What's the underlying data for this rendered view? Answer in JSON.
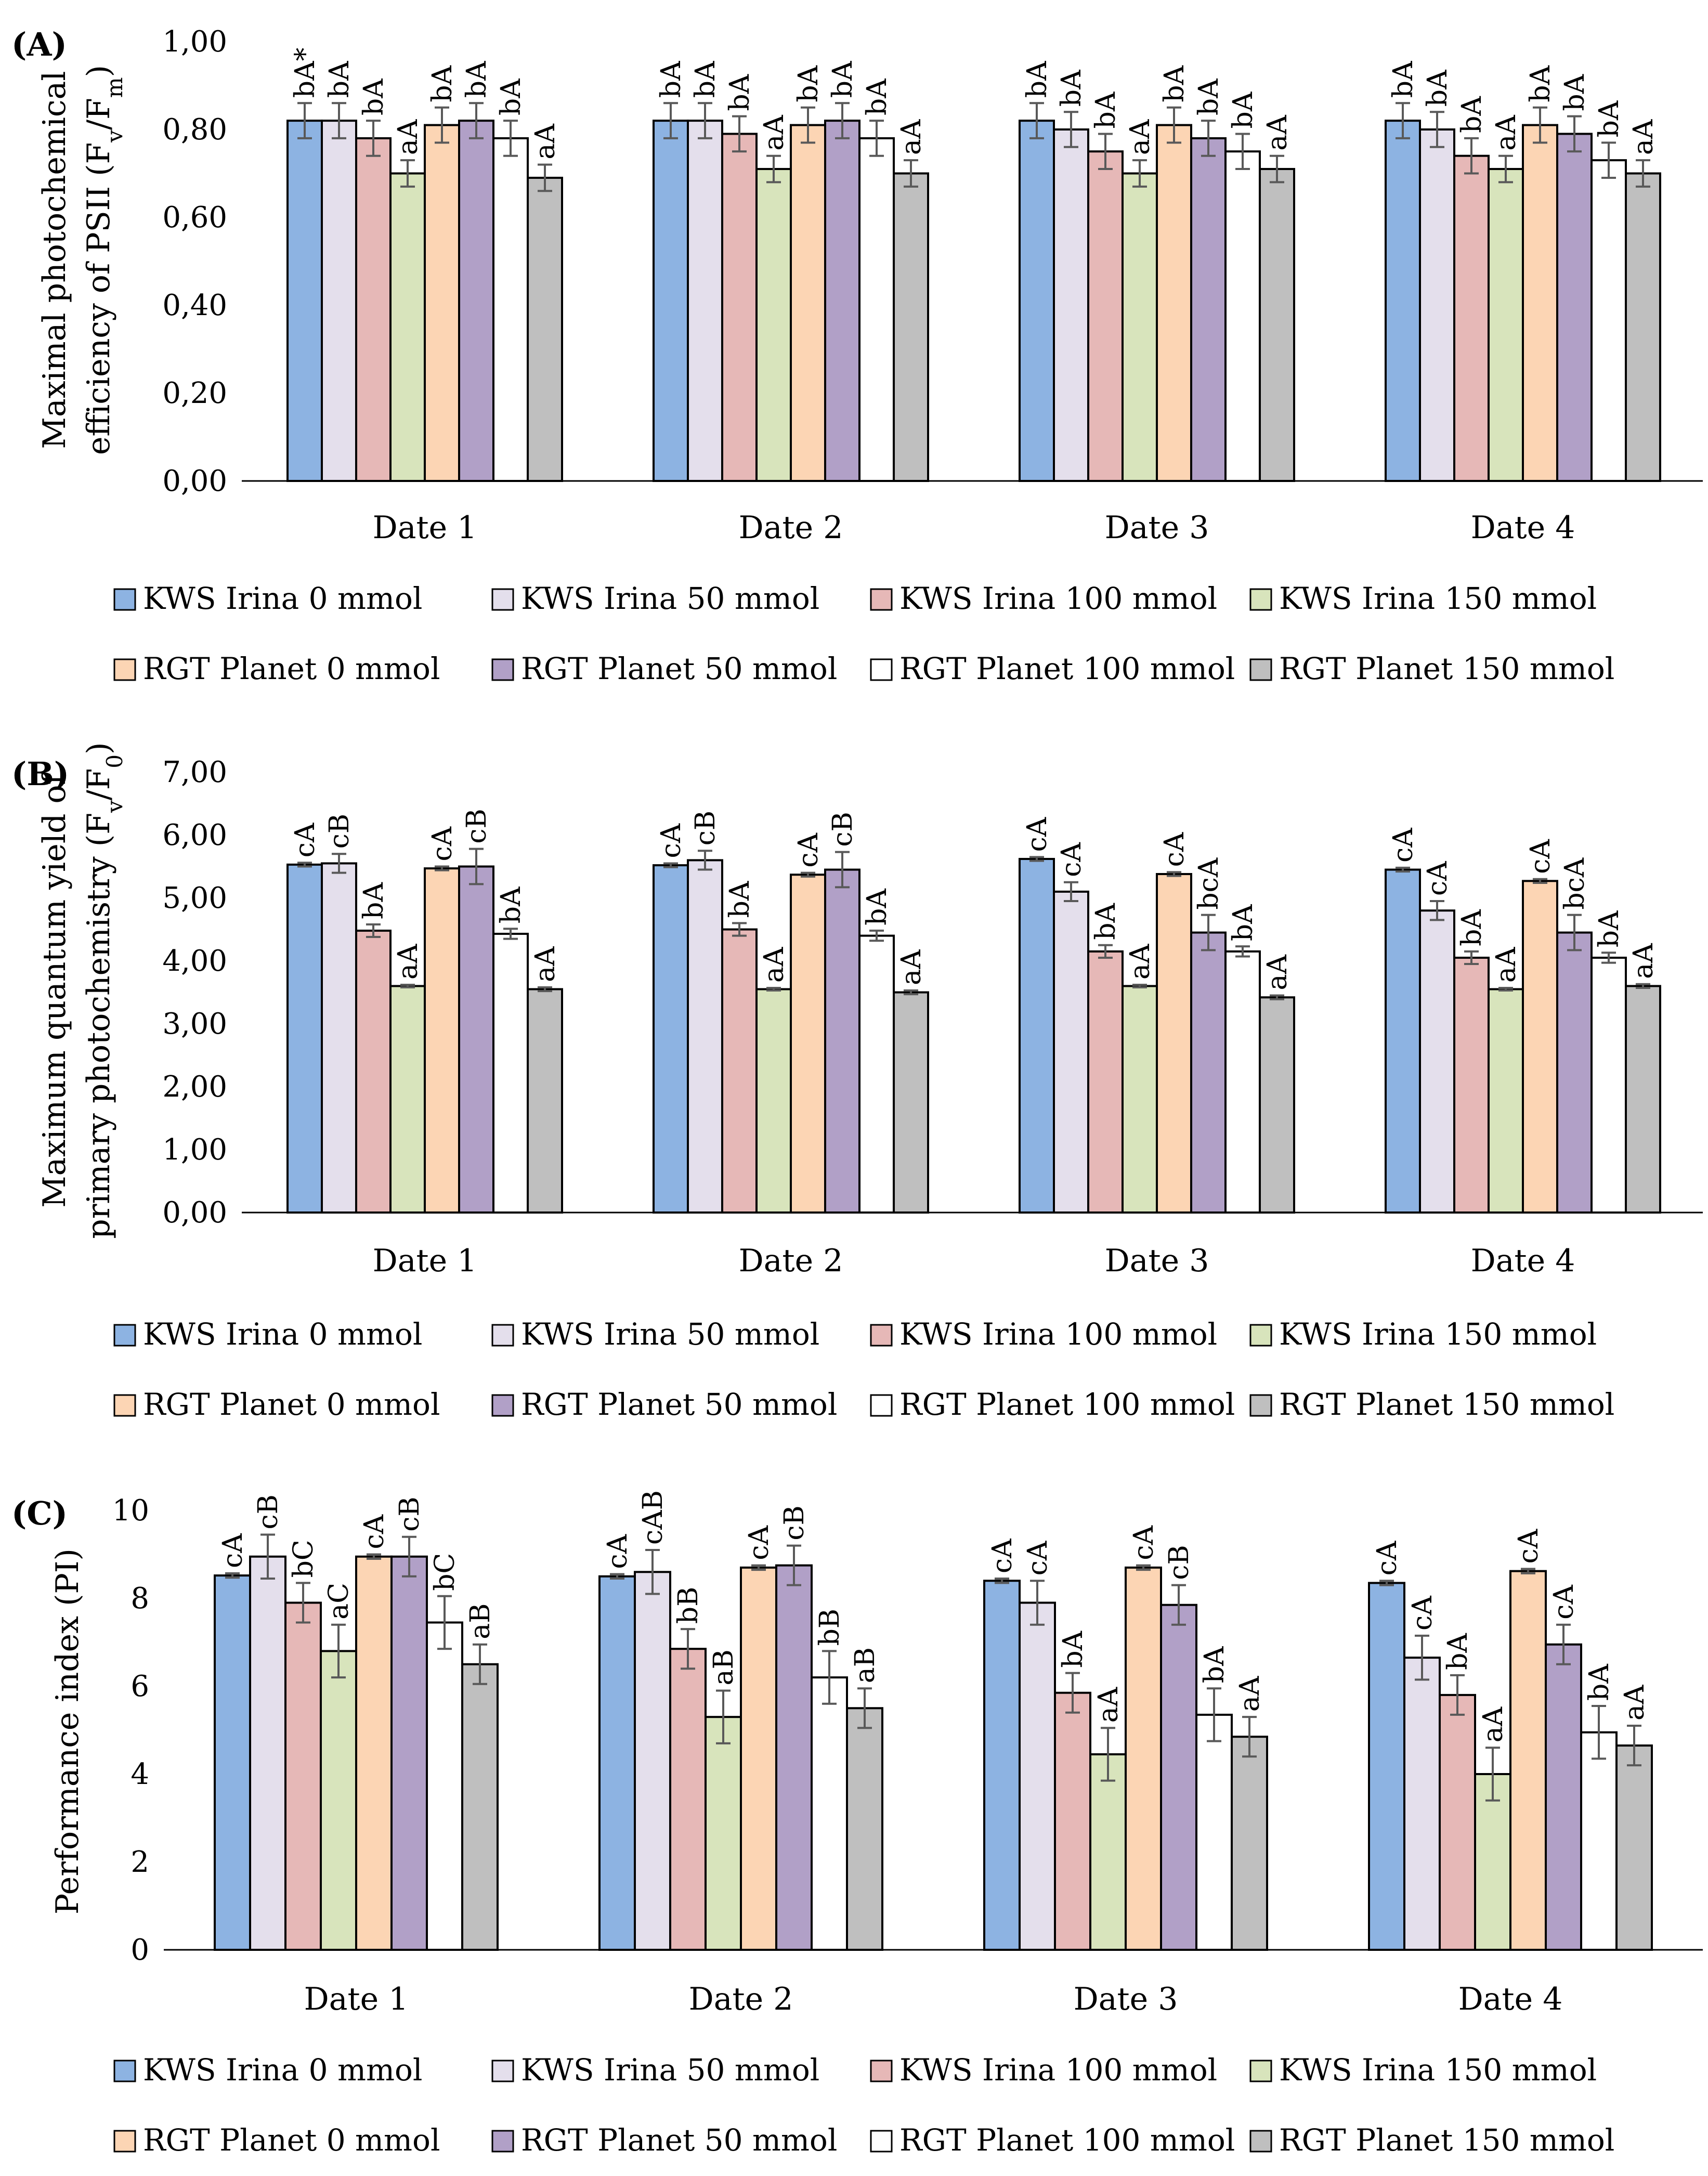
{
  "legend": {
    "items": [
      {
        "label": "KWS Irina 0 mmol",
        "color": "#8db3e2"
      },
      {
        "label": "KWS Irina 50 mmol",
        "color": "#e4dfec"
      },
      {
        "label": "KWS Irina 100 mmol",
        "color": "#e6b8b7"
      },
      {
        "label": "KWS Irina 150 mmol",
        "color": "#d8e4bc"
      },
      {
        "label": "RGT Planet 0 mmol",
        "color": "#fcd5b4"
      },
      {
        "label": "RGT Planet 50 mmol",
        "color": "#b1a0c7"
      },
      {
        "label": "RGT Planet 100 mmol",
        "color": "#ffffff"
      },
      {
        "label": "RGT Planet 150 mmol",
        "color": "#bfbfbf"
      }
    ]
  },
  "chart_data": [
    {
      "panel": "(A)",
      "type": "bar",
      "ylabel_line1": "Maximal photochemical",
      "ylabel_line2_parts": [
        "efficiency of PSII (F",
        "v",
        "/F",
        "m",
        ")"
      ],
      "ylim": [
        0,
        1
      ],
      "yticks": [
        "0,00",
        "0,20",
        "0,40",
        "0,60",
        "0,80",
        "1,00"
      ],
      "categories": [
        "Date 1",
        "Date 2",
        "Date 3",
        "Date 4"
      ],
      "series": [
        {
          "name": "KWS Irina 0 mmol",
          "values": [
            0.82,
            0.82,
            0.82,
            0.82
          ],
          "errors": [
            0.04,
            0.04,
            0.04,
            0.04
          ],
          "letters": [
            "bA*",
            "bA",
            "bA",
            "bA"
          ]
        },
        {
          "name": "KWS Irina 50 mmol",
          "values": [
            0.82,
            0.82,
            0.8,
            0.8
          ],
          "errors": [
            0.04,
            0.04,
            0.04,
            0.04
          ],
          "letters": [
            "bA",
            "bA",
            "bA",
            "bA"
          ]
        },
        {
          "name": "KWS Irina 100 mmol",
          "values": [
            0.78,
            0.79,
            0.75,
            0.74
          ],
          "errors": [
            0.04,
            0.04,
            0.04,
            0.04
          ],
          "letters": [
            "bA",
            "bA",
            "bA",
            "bA"
          ]
        },
        {
          "name": "KWS Irina 150 mmol",
          "values": [
            0.7,
            0.71,
            0.7,
            0.71
          ],
          "errors": [
            0.03,
            0.03,
            0.03,
            0.03
          ],
          "letters": [
            "aA",
            "aA",
            "aA",
            "aA"
          ]
        },
        {
          "name": "RGT Planet 0 mmol",
          "values": [
            0.81,
            0.81,
            0.81,
            0.81
          ],
          "errors": [
            0.04,
            0.04,
            0.04,
            0.04
          ],
          "letters": [
            "bA",
            "bA",
            "bA",
            "bA"
          ]
        },
        {
          "name": "RGT Planet 50 mmol",
          "values": [
            0.82,
            0.82,
            0.78,
            0.79
          ],
          "errors": [
            0.04,
            0.04,
            0.04,
            0.04
          ],
          "letters": [
            "bA",
            "bA",
            "bA",
            "bA"
          ]
        },
        {
          "name": "RGT Planet 100 mmol",
          "values": [
            0.78,
            0.78,
            0.75,
            0.73
          ],
          "errors": [
            0.04,
            0.04,
            0.04,
            0.04
          ],
          "letters": [
            "bA",
            "bA",
            "bA",
            "bA"
          ]
        },
        {
          "name": "RGT Planet 150 mmol",
          "values": [
            0.69,
            0.7,
            0.71,
            0.7
          ],
          "errors": [
            0.03,
            0.03,
            0.03,
            0.03
          ],
          "letters": [
            "aA",
            "aA",
            "aA",
            "aA"
          ]
        }
      ]
    },
    {
      "panel": "(B)",
      "type": "bar",
      "ylabel_line1": "Maximum quantum yield of",
      "ylabel_line2_parts": [
        "primary photochemistry (F",
        "v",
        "/F",
        "0",
        ")"
      ],
      "ylim": [
        0,
        7
      ],
      "yticks": [
        "0,00",
        "1,00",
        "2,00",
        "3,00",
        "4,00",
        "5,00",
        "6,00",
        "7,00"
      ],
      "categories": [
        "Date 1",
        "Date 2",
        "Date 3",
        "Date 4"
      ],
      "series": [
        {
          "name": "KWS Irina 0 mmol",
          "values": [
            5.53,
            5.52,
            5.62,
            5.45
          ],
          "errors": [
            0.03,
            0.03,
            0.03,
            0.03
          ],
          "letters": [
            "cA",
            "cA",
            "cA",
            "cA"
          ]
        },
        {
          "name": "KWS Irina 50 mmol",
          "values": [
            5.55,
            5.6,
            5.1,
            4.8
          ],
          "errors": [
            0.15,
            0.15,
            0.15,
            0.15
          ],
          "letters": [
            "cB",
            "cB",
            "cA",
            "cA"
          ]
        },
        {
          "name": "KWS Irina 100 mmol",
          "values": [
            4.48,
            4.5,
            4.15,
            4.05
          ],
          "errors": [
            0.1,
            0.1,
            0.1,
            0.1
          ],
          "letters": [
            "bA",
            "bA",
            "bA",
            "bA"
          ]
        },
        {
          "name": "KWS Irina 150 mmol",
          "values": [
            3.6,
            3.55,
            3.6,
            3.55
          ],
          "errors": [
            0.02,
            0.02,
            0.02,
            0.02
          ],
          "letters": [
            "aA",
            "aA",
            "aA",
            "aA"
          ]
        },
        {
          "name": "RGT Planet 0 mmol",
          "values": [
            5.47,
            5.37,
            5.38,
            5.27
          ],
          "errors": [
            0.03,
            0.03,
            0.03,
            0.03
          ],
          "letters": [
            "cA",
            "cA",
            "cA",
            "cA"
          ]
        },
        {
          "name": "RGT Planet 50 mmol",
          "values": [
            5.5,
            5.45,
            4.45,
            4.45
          ],
          "errors": [
            0.28,
            0.28,
            0.28,
            0.28
          ],
          "letters": [
            "cB",
            "cB",
            "bcA",
            "bcA"
          ]
        },
        {
          "name": "RGT Planet 100 mmol",
          "values": [
            4.43,
            4.4,
            4.15,
            4.05
          ],
          "errors": [
            0.08,
            0.08,
            0.08,
            0.08
          ],
          "letters": [
            "bA",
            "bA",
            "bA",
            "bA"
          ]
        },
        {
          "name": "RGT Planet 150 mmol",
          "values": [
            3.55,
            3.5,
            3.42,
            3.6
          ],
          "errors": [
            0.03,
            0.03,
            0.03,
            0.03
          ],
          "letters": [
            "aA",
            "aA",
            "aA",
            "aA"
          ]
        }
      ]
    },
    {
      "panel": "(C)",
      "type": "bar",
      "ylabel_line1": "Performance index (PI)",
      "ylim": [
        0,
        10
      ],
      "yticks": [
        "0",
        "2",
        "4",
        "6",
        "8",
        "10"
      ],
      "categories": [
        "Date 1",
        "Date 2",
        "Date 3",
        "Date 4"
      ],
      "series": [
        {
          "name": "KWS Irina 0 mmol",
          "values": [
            8.52,
            8.5,
            8.4,
            8.35
          ],
          "errors": [
            0.05,
            0.05,
            0.05,
            0.05
          ],
          "letters": [
            "cA",
            "cA",
            "cA",
            "cA"
          ]
        },
        {
          "name": "KWS Irina 50 mmol",
          "values": [
            8.95,
            8.6,
            7.9,
            6.65
          ],
          "errors": [
            0.5,
            0.5,
            0.5,
            0.5
          ],
          "letters": [
            "cB",
            "cAB",
            "cA",
            "cA"
          ]
        },
        {
          "name": "KWS Irina 100 mmol",
          "values": [
            7.9,
            6.85,
            5.85,
            5.8
          ],
          "errors": [
            0.45,
            0.45,
            0.45,
            0.45
          ],
          "letters": [
            "bC",
            "bB",
            "bA",
            "bA"
          ]
        },
        {
          "name": "KWS Irina 150 mmol",
          "values": [
            6.8,
            5.3,
            4.45,
            4.0
          ],
          "errors": [
            0.6,
            0.6,
            0.6,
            0.6
          ],
          "letters": [
            "aC",
            "aB",
            "aA",
            "aA"
          ]
        },
        {
          "name": "RGT Planet 0 mmol",
          "values": [
            8.95,
            8.7,
            8.7,
            8.62
          ],
          "errors": [
            0.05,
            0.05,
            0.05,
            0.05
          ],
          "letters": [
            "cA",
            "cA",
            "cA",
            "cA"
          ]
        },
        {
          "name": "RGT Planet 50 mmol",
          "values": [
            8.95,
            8.75,
            7.85,
            6.95
          ],
          "errors": [
            0.45,
            0.45,
            0.45,
            0.45
          ],
          "letters": [
            "cB",
            "cB",
            "cB",
            "cA"
          ]
        },
        {
          "name": "RGT Planet 100 mmol",
          "values": [
            7.45,
            6.2,
            5.35,
            4.95
          ],
          "errors": [
            0.6,
            0.6,
            0.6,
            0.6
          ],
          "letters": [
            "bC",
            "bB",
            "bA",
            "bA"
          ]
        },
        {
          "name": "RGT Planet 150 mmol",
          "values": [
            6.5,
            5.5,
            4.85,
            4.65
          ],
          "errors": [
            0.45,
            0.45,
            0.45,
            0.45
          ],
          "letters": [
            "aB",
            "aB",
            "aA",
            "aA"
          ]
        }
      ]
    }
  ]
}
